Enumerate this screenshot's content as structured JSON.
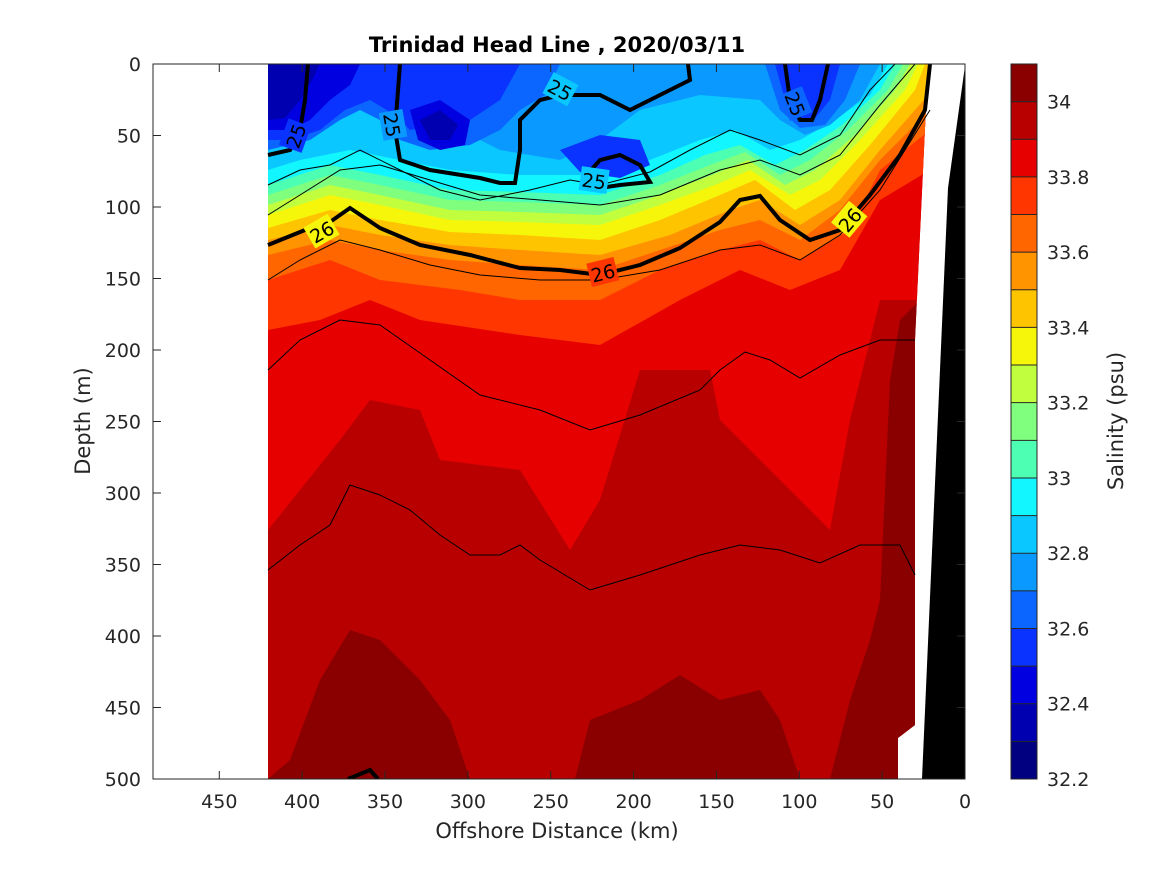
{
  "chart_data": {
    "type": "heatmap",
    "title": "Trinidad Head Line , 2020/03/11",
    "xlabel": "Offshore Distance (km)",
    "ylabel": "Depth (m)",
    "xlim": [
      490,
      0
    ],
    "ylim": [
      0,
      500
    ],
    "x_reversed": true,
    "y_reversed": true,
    "xticks": [
      450,
      400,
      350,
      300,
      250,
      200,
      150,
      100,
      50,
      0
    ],
    "yticks": [
      0,
      50,
      100,
      150,
      200,
      250,
      300,
      350,
      400,
      450,
      500
    ],
    "data_extent_km": [
      420,
      0
    ],
    "grid": false,
    "colorbar": {
      "label": "Salinity (psu)",
      "range": [
        32.2,
        34.1
      ],
      "step": 0.1,
      "ticks": [
        32.2,
        32.4,
        32.6,
        32.8,
        33,
        33.2,
        33.4,
        33.6,
        33.8,
        34
      ],
      "colors": [
        "#000080",
        "#0000b0",
        "#0000e0",
        "#0a33ff",
        "#0a66ff",
        "#0a99ff",
        "#0ac8ff",
        "#12f6ff",
        "#4cffb2",
        "#80ff7e",
        "#c1ff3e",
        "#f6f60a",
        "#ffc400",
        "#ff9400",
        "#ff6600",
        "#ff3600",
        "#e60000",
        "#b80000",
        "#8a0000"
      ]
    },
    "density_contours": [
      {
        "value": 25,
        "label": "25",
        "emphasis": true
      },
      {
        "value": 26,
        "label": "26",
        "emphasis": true
      }
    ],
    "bathymetry_color": "#000000",
    "salinity_profile_summary": {
      "depth_m": [
        0,
        50,
        100,
        150,
        200,
        300,
        400,
        500
      ],
      "salinity_psu_typical": [
        32.5,
        32.6,
        33.0,
        33.75,
        33.9,
        33.95,
        34.0,
        34.05
      ]
    }
  }
}
